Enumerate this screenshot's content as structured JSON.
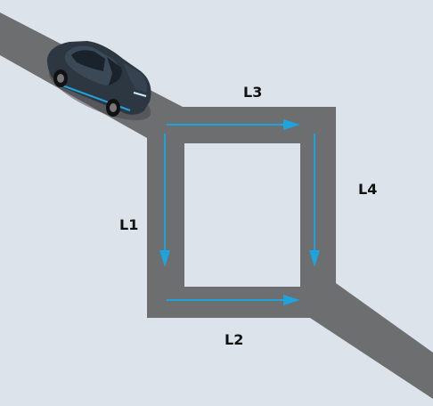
{
  "labels": {
    "l1": "L1",
    "l2": "L2",
    "l3": "L3",
    "l4": "L4"
  },
  "colors": {
    "background": "#dde3ea",
    "road": "#6d6e70",
    "inner_block": "#dde3ea",
    "arrow": "#1fa3dd",
    "car_body": "#2c3742",
    "car_glass": "#1a222b",
    "car_accent": "#1fa3dd"
  },
  "icons": {
    "car": "car-icon"
  }
}
